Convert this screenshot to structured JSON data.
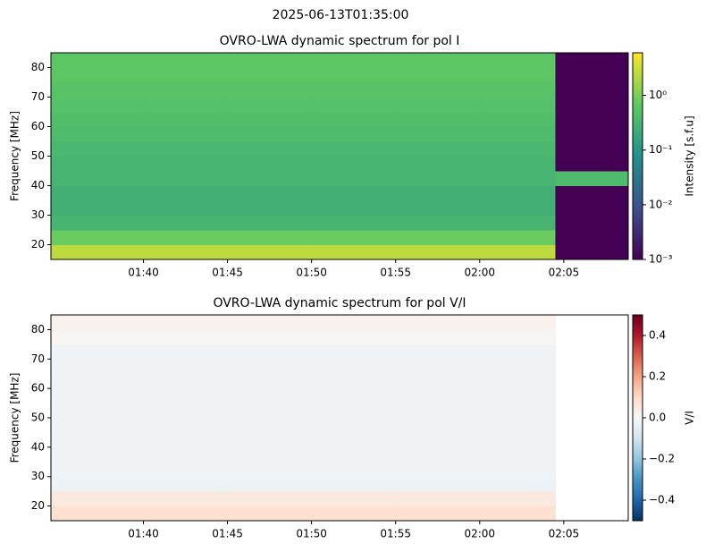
{
  "title": "2025-06-13T01:35:00",
  "chart_data": [
    {
      "type": "heatmap",
      "title": "OVRO-LWA dynamic spectrum for pol I",
      "ylabel": "Frequency [MHz]",
      "colorbar_label": "Intensity [s.f.u]",
      "colormap": "viridis",
      "color_scale": "log",
      "clim": [
        0.001,
        6
      ],
      "cticks": [
        {
          "value": 0.001,
          "label": "10⁻³"
        },
        {
          "value": 0.01,
          "label": "10⁻²"
        },
        {
          "value": 0.1,
          "label": "10⁻¹"
        },
        {
          "value": 1,
          "label": "10⁰"
        }
      ],
      "xlim": [
        "01:34:30",
        "02:08:50"
      ],
      "xticks": [
        "01:40",
        "01:45",
        "01:50",
        "01:55",
        "02:00",
        "02:05"
      ],
      "ylim": [
        15,
        85
      ],
      "yticks": [
        20,
        30,
        40,
        50,
        60,
        70,
        80
      ],
      "x_edges": [
        "01:34:30",
        "01:40",
        "01:45",
        "01:50",
        "01:55",
        "02:00",
        "02:04:30",
        "02:08:50"
      ],
      "y_edges": [
        15,
        20,
        25,
        30,
        35,
        40,
        45,
        50,
        55,
        60,
        65,
        70,
        75,
        80,
        85
      ],
      "z": [
        [
          2.5,
          2.5,
          2.5,
          2.5,
          2.5,
          2.5,
          0.001
        ],
        [
          0.8,
          0.8,
          0.8,
          0.8,
          0.8,
          0.8,
          0.001
        ],
        [
          0.3,
          0.3,
          0.3,
          0.3,
          0.3,
          0.3,
          0.001
        ],
        [
          0.25,
          0.25,
          0.25,
          0.25,
          0.25,
          0.25,
          0.001
        ],
        [
          0.25,
          0.25,
          0.25,
          0.25,
          0.25,
          0.25,
          0.001
        ],
        [
          0.3,
          0.3,
          0.3,
          0.3,
          0.3,
          0.3,
          0.4
        ],
        [
          0.3,
          0.3,
          0.3,
          0.3,
          0.3,
          0.3,
          0.001
        ],
        [
          0.35,
          0.35,
          0.35,
          0.35,
          0.35,
          0.35,
          0.001
        ],
        [
          0.4,
          0.4,
          0.4,
          0.4,
          0.4,
          0.4,
          0.001
        ],
        [
          0.45,
          0.45,
          0.45,
          0.45,
          0.45,
          0.45,
          0.001
        ],
        [
          0.5,
          0.5,
          0.5,
          0.5,
          0.5,
          0.5,
          0.001
        ],
        [
          0.55,
          0.55,
          0.55,
          0.55,
          0.55,
          0.55,
          0.001
        ],
        [
          0.6,
          0.6,
          0.6,
          0.6,
          0.6,
          0.6,
          0.001
        ],
        [
          0.6,
          0.6,
          0.6,
          0.6,
          0.6,
          0.6,
          0.001
        ]
      ]
    },
    {
      "type": "heatmap",
      "title": "OVRO-LWA dynamic spectrum for pol V/I",
      "ylabel": "Frequency [MHz]",
      "colorbar_label": "V/I",
      "colormap": "RdBu_r",
      "color_scale": "linear",
      "clim": [
        -0.5,
        0.5
      ],
      "cticks": [
        {
          "value": -0.4,
          "label": "−0.4"
        },
        {
          "value": -0.2,
          "label": "−0.2"
        },
        {
          "value": 0,
          "label": "0.0"
        },
        0.2,
        0.4
      ],
      "xlim": [
        "01:34:30",
        "02:08:50"
      ],
      "xticks": [
        "01:40",
        "01:45",
        "01:50",
        "01:55",
        "02:00",
        "02:05"
      ],
      "ylim": [
        15,
        85
      ],
      "yticks": [
        20,
        30,
        40,
        50,
        60,
        70,
        80
      ],
      "x_edges": [
        "01:34:30",
        "01:40",
        "01:45",
        "01:50",
        "01:55",
        "02:00",
        "02:04:30",
        "02:08:50"
      ],
      "y_edges": [
        15,
        20,
        25,
        30,
        35,
        40,
        45,
        50,
        55,
        60,
        65,
        70,
        75,
        80,
        85
      ],
      "z": [
        [
          0.08,
          0.08,
          0.08,
          0.08,
          0.08,
          0.08,
          null
        ],
        [
          0.05,
          0.05,
          0.05,
          0.05,
          0.05,
          0.05,
          null
        ],
        [
          -0.03,
          -0.03,
          -0.03,
          -0.03,
          -0.03,
          -0.03,
          null
        ],
        [
          -0.02,
          -0.02,
          -0.02,
          -0.02,
          -0.02,
          -0.02,
          null
        ],
        [
          -0.02,
          -0.02,
          -0.02,
          -0.02,
          -0.02,
          -0.02,
          null
        ],
        [
          -0.02,
          -0.02,
          -0.02,
          -0.02,
          -0.02,
          -0.02,
          null
        ],
        [
          -0.02,
          -0.02,
          -0.02,
          -0.02,
          -0.02,
          -0.02,
          null
        ],
        [
          -0.02,
          -0.02,
          -0.02,
          -0.02,
          -0.02,
          -0.02,
          null
        ],
        [
          -0.02,
          -0.02,
          -0.02,
          -0.02,
          -0.02,
          -0.02,
          null
        ],
        [
          -0.02,
          -0.02,
          -0.02,
          -0.02,
          -0.02,
          -0.02,
          null
        ],
        [
          -0.02,
          -0.02,
          -0.02,
          -0.02,
          -0.02,
          -0.02,
          null
        ],
        [
          -0.02,
          -0.02,
          -0.02,
          -0.02,
          -0.02,
          -0.02,
          null
        ],
        [
          0.01,
          0.01,
          0.01,
          0.01,
          0.01,
          0.01,
          null
        ],
        [
          0.02,
          0.02,
          0.02,
          0.02,
          0.02,
          0.02,
          null
        ]
      ]
    }
  ]
}
